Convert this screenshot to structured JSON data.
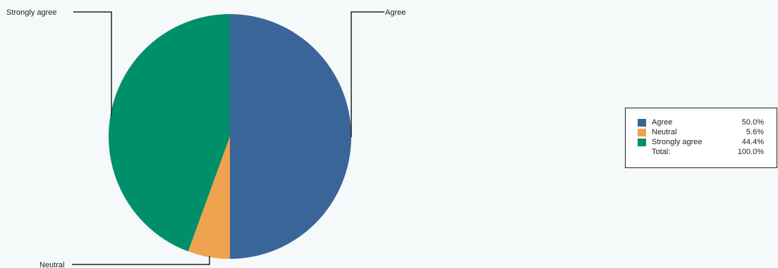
{
  "chart_data": {
    "type": "pie",
    "categories": [
      "Agree",
      "Neutral",
      "Strongly agree"
    ],
    "values": [
      50.0,
      5.6,
      44.4
    ],
    "colors": [
      "#3a6598",
      "#efa34f",
      "#008f6b"
    ],
    "title": "",
    "start_angle_deg": 0,
    "direction": "clockwise",
    "callouts": {
      "agree": "Agree",
      "neutral": "Neutral",
      "strongly_agree": "Strongly agree"
    },
    "legend": {
      "placement": "right",
      "rows": [
        {
          "label": "Agree",
          "value": "50.0%",
          "color": "#3a6598"
        },
        {
          "label": "Neutral",
          "value": "5.6%",
          "color": "#efa34f"
        },
        {
          "label": "Strongly agree",
          "value": "44.4%",
          "color": "#008f6b"
        }
      ],
      "total_label": "Total:",
      "total_value": "100.0%"
    }
  }
}
